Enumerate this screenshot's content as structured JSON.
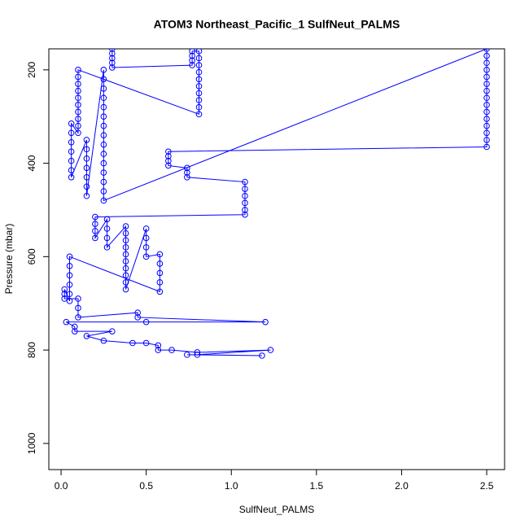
{
  "chart_data": {
    "type": "line",
    "title": "ATOM3 Northeast_Pacific_1 SulfNeut_PALMS",
    "x_label": "SulfNeut_PALMS",
    "y_label": "Pressure (mbar)",
    "color": "#0000ff",
    "marker": "open-circle",
    "xlim": [
      -0.072,
      2.605
    ],
    "ylim": [
      1056,
      155
    ],
    "xticks": [
      {
        "value": 0,
        "label": "0.0"
      },
      0.5,
      {
        "value": 1,
        "label": "1.0"
      },
      1.5,
      {
        "value": 2,
        "label": "2.0"
      },
      2.5
    ],
    "yticks": [
      200,
      400,
      600,
      800,
      1000
    ],
    "x": [
      0.3,
      0.3,
      0.3,
      0.3,
      0.3,
      0.77,
      0.77,
      0.77,
      0.77,
      0.81,
      0.81,
      0.81,
      0.81,
      0.81,
      0.81,
      0.81,
      0.81,
      0.81,
      0.81,
      0.1,
      0.1,
      0.1,
      0.1,
      0.1,
      0.1,
      0.1,
      0.1,
      0.1,
      0.1,
      0.06,
      0.06,
      0.06,
      0.06,
      0.06,
      0.06,
      0.06,
      0.15,
      0.15,
      0.15,
      0.15,
      0.15,
      0.15,
      0.15,
      0.25,
      0.25,
      0.25,
      0.25,
      0.25,
      0.25,
      0.25,
      0.25,
      0.25,
      0.25,
      0.25,
      0.25,
      0.25,
      0.25,
      0.25,
      2.5,
      2.5,
      2.5,
      2.5,
      2.5,
      2.5,
      2.5,
      2.5,
      2.5,
      2.5,
      2.5,
      2.5,
      2.5,
      2.5,
      2.5,
      0.63,
      0.63,
      0.63,
      0.63,
      0.74,
      0.74,
      0.74,
      1.08,
      1.08,
      1.08,
      1.08,
      1.08,
      1.08,
      0.2,
      0.2,
      0.2,
      0.2,
      0.27,
      0.27,
      0.27,
      0.27,
      0.38,
      0.38,
      0.38,
      0.38,
      0.38,
      0.38,
      0.38,
      0.38,
      0.38,
      0.38,
      0.5,
      0.5,
      0.5,
      0.5,
      0.58,
      0.58,
      0.58,
      0.58,
      0.58,
      0.05,
      0.05,
      0.05,
      0.05,
      0.05,
      0.05,
      0.02,
      0.02,
      0.02,
      0.1,
      0.1,
      0.1,
      0.45,
      0.45,
      1.2,
      0.5,
      0.03,
      0.08,
      0.08,
      0.3,
      0.15,
      0.25,
      0.42,
      0.5,
      0.57,
      0.57,
      0.65,
      0.8,
      1.23,
      0.8,
      1.18,
      0.74
    ],
    "values": [
      155,
      165,
      175,
      185,
      195,
      190,
      180,
      170,
      160,
      160,
      175,
      190,
      205,
      220,
      235,
      250,
      265,
      280,
      295,
      200,
      215,
      230,
      245,
      260,
      275,
      290,
      305,
      320,
      335,
      315,
      335,
      355,
      375,
      395,
      415,
      430,
      350,
      370,
      390,
      410,
      430,
      450,
      470,
      200,
      220,
      240,
      260,
      280,
      300,
      320,
      340,
      360,
      380,
      400,
      420,
      440,
      460,
      480,
      155,
      170,
      185,
      200,
      215,
      230,
      245,
      260,
      275,
      290,
      305,
      320,
      335,
      350,
      365,
      375,
      385,
      395,
      405,
      410,
      420,
      430,
      440,
      455,
      470,
      485,
      500,
      510,
      515,
      530,
      545,
      560,
      520,
      540,
      560,
      580,
      535,
      550,
      565,
      580,
      595,
      610,
      625,
      640,
      655,
      670,
      540,
      560,
      580,
      600,
      595,
      615,
      635,
      655,
      675,
      600,
      620,
      640,
      660,
      680,
      695,
      670,
      680,
      690,
      690,
      710,
      730,
      720,
      730,
      740,
      740,
      740,
      750,
      760,
      760,
      770,
      780,
      785,
      785,
      790,
      800,
      800,
      805,
      800,
      810,
      812,
      810
    ]
  }
}
